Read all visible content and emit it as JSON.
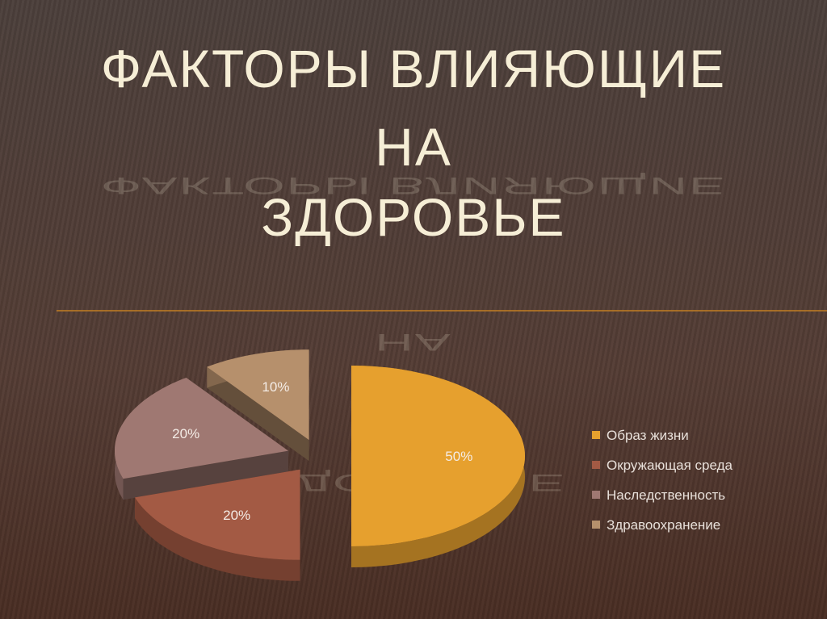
{
  "chart_data": {
    "type": "pie",
    "title_lines": [
      "ФАКТОРЫ ВЛИЯЮЩИЕ",
      "НА",
      "ЗДОРОВЬЕ"
    ],
    "categories": [
      "Образ жизни",
      "Окружающая среда",
      "Наследственность",
      "Здравоохранение"
    ],
    "values": [
      50,
      20,
      20,
      10
    ],
    "value_labels": [
      "50%",
      "20%",
      "20%",
      "10%"
    ],
    "colors": [
      "#e6a02e",
      "#a35a44",
      "#9f7872",
      "#b6906c"
    ],
    "legend": "right"
  }
}
